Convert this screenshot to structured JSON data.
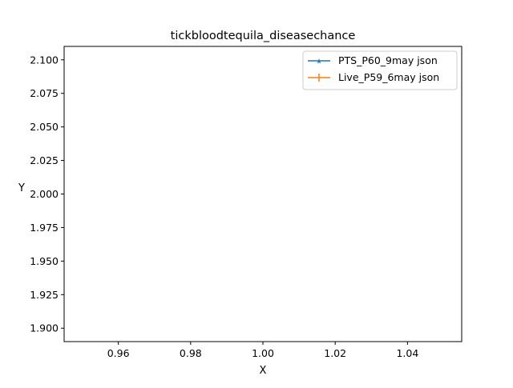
{
  "chart_data": {
    "type": "line",
    "title": "tickbloodtequila_diseasechance",
    "xlabel": "X",
    "ylabel": "Y",
    "xlim": [
      0.945,
      1.055
    ],
    "ylim": [
      1.89,
      2.11
    ],
    "x_ticks": [
      0.96,
      0.98,
      1.0,
      1.02,
      1.04
    ],
    "x_tick_labels": [
      "0.96",
      "0.98",
      "1.00",
      "1.02",
      "1.04"
    ],
    "y_ticks": [
      1.9,
      1.925,
      1.95,
      1.975,
      2.0,
      2.025,
      2.05,
      2.075,
      2.1
    ],
    "y_tick_labels": [
      "1.900",
      "1.925",
      "1.950",
      "1.975",
      "2.000",
      "2.025",
      "2.050",
      "2.075",
      "2.100"
    ],
    "grid": false,
    "legend_position": "top-right",
    "series": [
      {
        "name": "PTS_P60_9may json",
        "color": "#1f77b4",
        "marker": "star",
        "x": [],
        "y": []
      },
      {
        "name": "Live_P59_6may json",
        "color": "#ff7f0e",
        "marker": "plus",
        "x": [],
        "y": []
      }
    ]
  }
}
